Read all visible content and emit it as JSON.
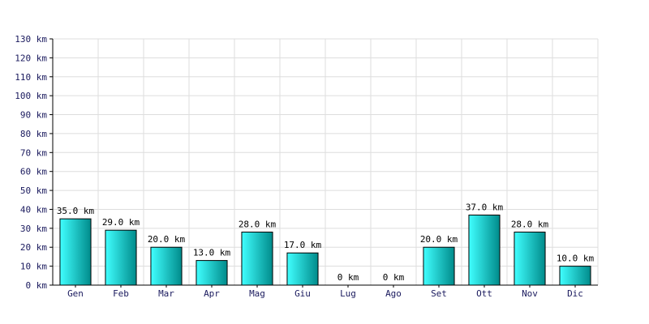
{
  "chart_data": {
    "type": "bar",
    "title": "",
    "xlabel": "",
    "ylabel": "",
    "unit": "km",
    "categories": [
      "Gen",
      "Feb",
      "Mar",
      "Apr",
      "Mag",
      "Giu",
      "Lug",
      "Ago",
      "Set",
      "Ott",
      "Nov",
      "Dic"
    ],
    "values": [
      35.0,
      29.0,
      20.0,
      13.0,
      28.0,
      17.0,
      0,
      0,
      20.0,
      37.0,
      28.0,
      10.0
    ],
    "value_labels": [
      "35.0 km",
      "29.0 km",
      "20.0 km",
      "13.0 km",
      "28.0 km",
      "17.0 km",
      "0 km",
      "0 km",
      "20.0 km",
      "37.0 km",
      "28.0 km",
      "10.0 km"
    ],
    "ylim": [
      0,
      130
    ],
    "y_ticks": [
      0,
      10,
      20,
      30,
      40,
      50,
      60,
      70,
      80,
      90,
      100,
      110,
      120,
      130
    ],
    "y_tick_labels": [
      "0 km",
      "10 km",
      "20 km",
      "30 km",
      "40 km",
      "50 km",
      "60 km",
      "70 km",
      "80 km",
      "90 km",
      "100 km",
      "110 km",
      "120 km",
      "130 km"
    ],
    "grid": true,
    "colors": {
      "bar_light": "#40ffff",
      "bar_dark": "#008b8b",
      "bar_border": "#000000",
      "grid": "#dddddd",
      "axis": "#000000",
      "tick_text": "#1a1a5e"
    }
  }
}
